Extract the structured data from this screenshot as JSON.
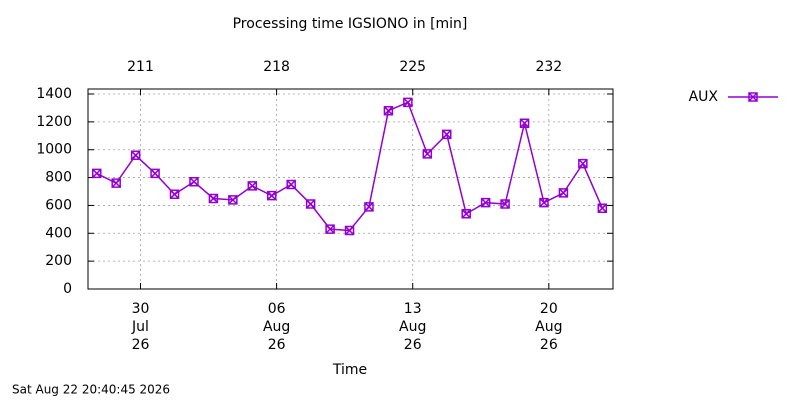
{
  "chart_data": {
    "type": "line",
    "title": "Processing time IGSIONO in [min]",
    "xlabel": "Time",
    "timestamp": "Sat Aug 22 20:40:45 2026",
    "x": [
      208.75,
      209.75,
      210.75,
      211.75,
      212.75,
      213.75,
      214.75,
      215.75,
      216.75,
      217.75,
      218.75,
      219.75,
      220.75,
      221.75,
      222.75,
      223.75,
      224.75,
      225.75,
      226.75,
      227.75,
      228.75,
      229.75,
      230.75,
      231.75,
      232.75,
      233.75,
      234.75
    ],
    "series": [
      {
        "name": "AUX",
        "color": "#9400d3",
        "values": [
          830,
          760,
          960,
          830,
          680,
          770,
          650,
          640,
          740,
          670,
          750,
          610,
          430,
          420,
          590,
          1280,
          1340,
          970,
          1110,
          540,
          620,
          610,
          1190,
          620,
          690,
          900,
          580
        ]
      }
    ],
    "xlim": [
      208.3,
      235.3
    ],
    "xticks": [
      {
        "value": 211,
        "label": [
          "30",
          "Jul",
          "26"
        ]
      },
      {
        "value": 218,
        "label": [
          "06",
          "Aug",
          "26"
        ]
      },
      {
        "value": 225,
        "label": [
          "13",
          "Aug",
          "26"
        ]
      },
      {
        "value": 232,
        "label": [
          "20",
          "Aug",
          "26"
        ]
      }
    ],
    "x2ticks": [
      211,
      218,
      225,
      232
    ],
    "ylim": [
      0,
      1400
    ],
    "yticks": [
      0,
      200,
      400,
      600,
      800,
      1000,
      1200,
      1400
    ],
    "grid": true,
    "legend": "right"
  }
}
